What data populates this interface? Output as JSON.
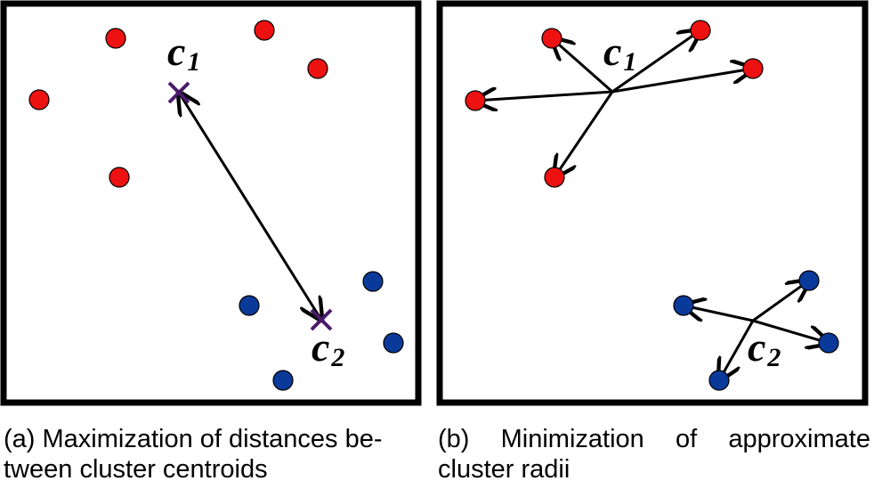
{
  "colors": {
    "red_point": "#ee1111",
    "blue_point": "#0a3a99",
    "centroid": "#4a1a6a",
    "frame": "#000000"
  },
  "panel_a": {
    "centroid_1": {
      "base": "c",
      "sub": "1"
    },
    "centroid_2": {
      "base": "c",
      "sub": "2"
    },
    "caption": [
      "(a) Maximization of distances be-",
      "tween cluster centroids"
    ]
  },
  "panel_b": {
    "centroid_1": {
      "base": "c",
      "sub": "1"
    },
    "centroid_2": {
      "base": "c",
      "sub": "2"
    },
    "caption_line1_words": [
      "(b)",
      "Minimization",
      "of",
      "approximate"
    ],
    "caption_line2": "cluster radii"
  }
}
